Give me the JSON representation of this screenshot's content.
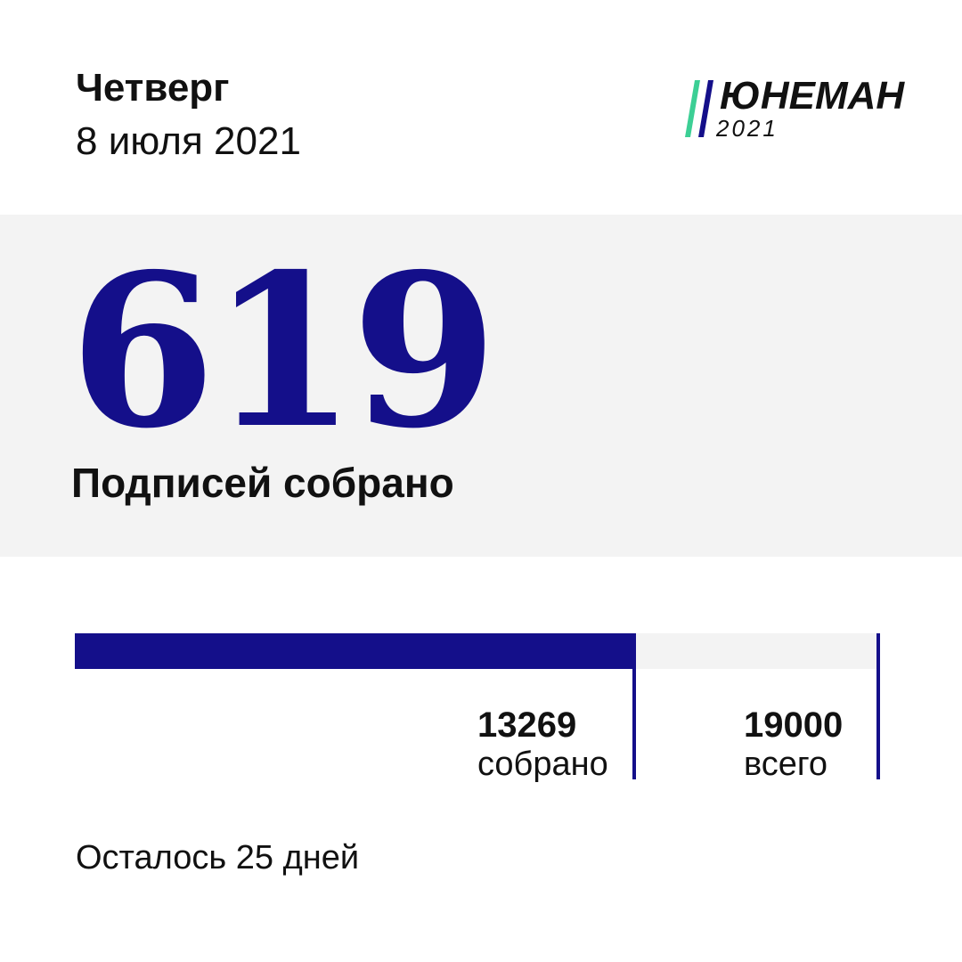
{
  "header": {
    "day": "Четверг",
    "date": "8 июля 2021"
  },
  "logo": {
    "name": "ЮНЕМАН",
    "year": "2021",
    "stripe_colors": [
      "#3ccf95",
      "#140f8a"
    ]
  },
  "today": {
    "count": "619",
    "caption": "Подписей собрано"
  },
  "progress": {
    "collected": 13269,
    "total": 19000,
    "collected_text": "13269",
    "collected_label": "собрано",
    "total_text": "19000",
    "total_label": "всего"
  },
  "footer": {
    "remaining": "Осталось 25 дней"
  },
  "colors": {
    "accent": "#140f8a",
    "logo_green": "#3ccf95",
    "panel_bg": "#f3f3f3",
    "text": "#111111"
  }
}
